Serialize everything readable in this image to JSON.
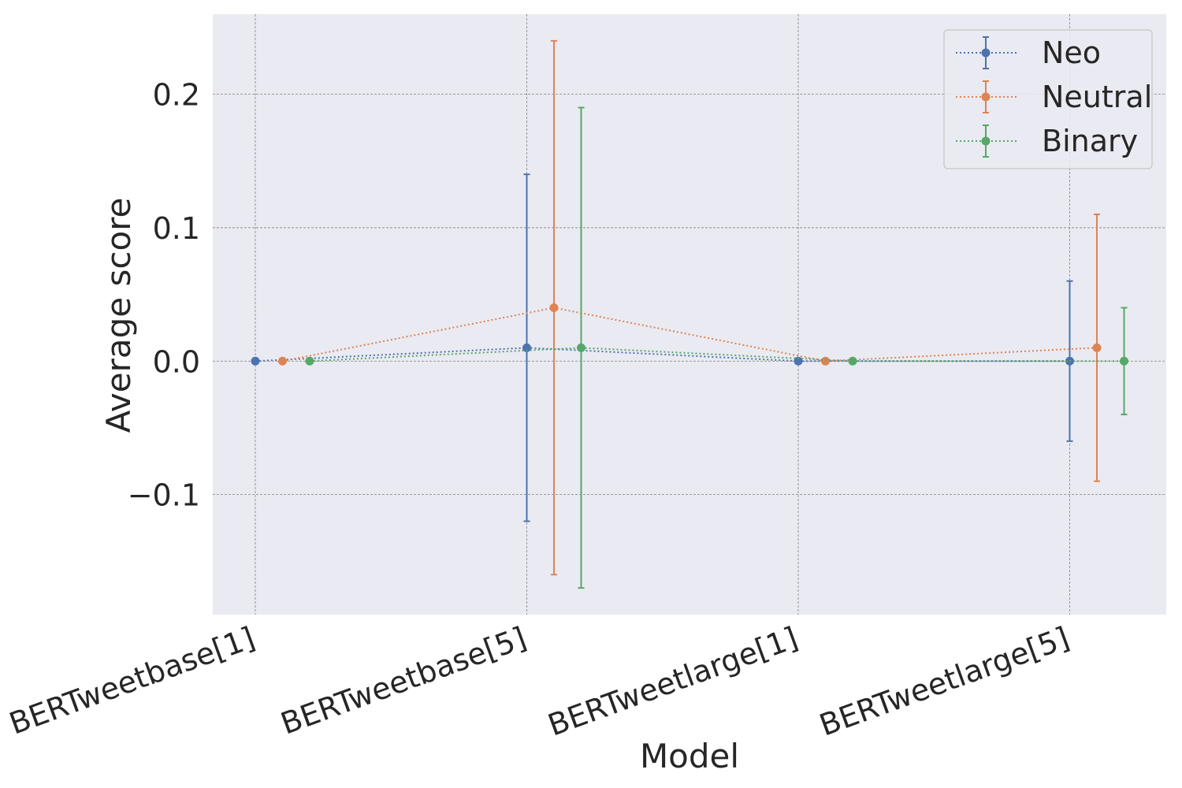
{
  "chart_data": {
    "type": "line",
    "xlabel": "Model",
    "ylabel": "Average score",
    "categories": [
      "BERTweetbase[1]",
      "BERTweetbase[5]",
      "BERTweetlarge[1]",
      "BERTweetlarge[5]"
    ],
    "ylim": [
      -0.19,
      0.26
    ],
    "yticks": [
      -0.1,
      0.0,
      0.1,
      0.2
    ],
    "ytick_labels": [
      "−0.1",
      "0.0",
      "0.1",
      "0.2"
    ],
    "grid": true,
    "legend_position": "top-right",
    "series": [
      {
        "name": "Neo",
        "color": "#4c72b0",
        "values": [
          0.0,
          0.01,
          0.0,
          0.0
        ],
        "errors": [
          0.0,
          0.13,
          0.0,
          0.06
        ]
      },
      {
        "name": "Neutral",
        "color": "#dd8452",
        "values": [
          0.0,
          0.04,
          0.0,
          0.01
        ],
        "errors": [
          0.0,
          0.2,
          0.0,
          0.1
        ]
      },
      {
        "name": "Binary",
        "color": "#55a868",
        "values": [
          0.0,
          0.01,
          0.0,
          0.0
        ],
        "errors": [
          0.0,
          0.18,
          0.0,
          0.04
        ]
      }
    ]
  }
}
